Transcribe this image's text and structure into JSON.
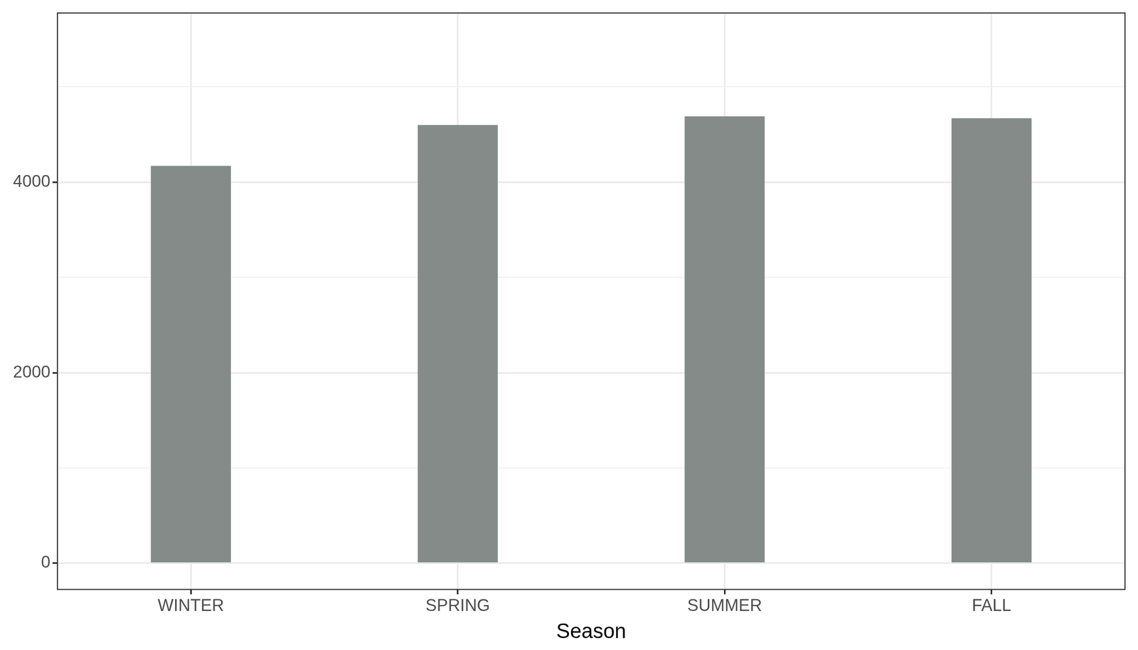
{
  "chart_data": {
    "type": "bar",
    "x_label": "Season",
    "categories": [
      "WINTER",
      "SPRING",
      "SUMMER",
      "FALL"
    ],
    "values": [
      4170,
      4600,
      4690,
      4670
    ],
    "color": "#848b88",
    "ylim": [
      -275,
      5775
    ],
    "yticks": [
      0,
      2000,
      4000
    ],
    "grid": true
  }
}
